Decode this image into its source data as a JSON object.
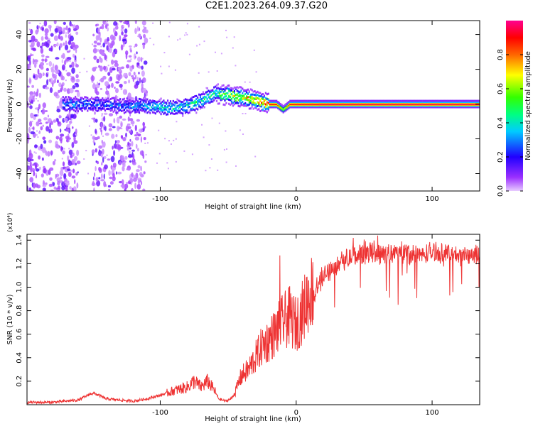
{
  "title": "C2E1.2023.264.09.37.G20",
  "colors": {
    "snr_line": "#ee3333",
    "frame": "#000000"
  },
  "chart_data": [
    {
      "type": "heatmap",
      "title": "C2E1.2023.264.09.37.G20",
      "xlabel": "Height of straight line (km)",
      "ylabel": "Frequency (Hz)",
      "xlim": [
        -198,
        135
      ],
      "ylim": [
        -50,
        48
      ],
      "xticks": [
        -100,
        0,
        100
      ],
      "xtick_labels": [
        "-100",
        "0",
        "100"
      ],
      "yticks": [
        -40,
        -20,
        0,
        20,
        40
      ],
      "ytick_labels": [
        "-40",
        "-20",
        "0",
        "20",
        "40"
      ],
      "colorbar": {
        "label": "Normalized spectral amplitude",
        "range": [
          0,
          1
        ],
        "ticks": [
          0,
          0.2,
          0.4,
          0.6,
          0.8
        ],
        "tick_labels": [
          "0.0",
          "0.2",
          "0.4",
          "0.6",
          "0.8"
        ],
        "colormap": "rainbow (violet-blue-cyan-green-yellow-red-magenta)"
      },
      "ridge": {
        "x": [
          -170,
          -150,
          -130,
          -110,
          -100,
          -90,
          -80,
          -70,
          -60,
          -50,
          -40,
          -30,
          -20,
          -15,
          -10,
          -5,
          0,
          20,
          60,
          100,
          135
        ],
        "freq": [
          0,
          0,
          -1,
          -1,
          -2,
          -2,
          -1,
          2,
          6,
          5,
          4,
          2,
          0,
          0,
          -3,
          0,
          0,
          0,
          0,
          0,
          0
        ],
        "amplitude": [
          0.35,
          0.3,
          0.3,
          0.4,
          0.45,
          0.45,
          0.45,
          0.5,
          0.5,
          0.75,
          0.8,
          0.85,
          0.9,
          0.9,
          0.6,
          0.9,
          0.92,
          0.95,
          0.95,
          0.95,
          0.95
        ]
      },
      "noise_regions": [
        {
          "x": [
            -198,
            -160
          ],
          "amplitude": 0.1
        },
        {
          "x": [
            -150,
            -110
          ],
          "amplitude": 0.1
        }
      ]
    },
    {
      "type": "line",
      "xlabel": "Height of straight line (km)",
      "ylabel": "SNR (10 * v/v)",
      "y_multiplier": "(x10⁴)",
      "xlim": [
        -198,
        135
      ],
      "ylim": [
        0,
        1.45
      ],
      "xticks": [
        -100,
        0,
        100
      ],
      "xtick_labels": [
        "-100",
        "0",
        "100"
      ],
      "yticks": [
        0.2,
        0.4,
        0.6,
        0.8,
        1.0,
        1.2,
        1.4
      ],
      "ytick_labels": [
        "0.2",
        "0.4",
        "0.6",
        "0.8",
        "1.0",
        "1.2",
        "1.4"
      ],
      "series": [
        {
          "x": [
            -198,
            -180,
            -160,
            -150,
            -145,
            -140,
            -120,
            -110,
            -100,
            -95,
            -90,
            -80,
            -75,
            -70,
            -65,
            -60,
            -57,
            -52,
            -48,
            -45,
            -42,
            -40,
            -35,
            -30,
            -25,
            -20,
            -15,
            -10,
            -5,
            0,
            5,
            10,
            15,
            20,
            25,
            30,
            40,
            50,
            60,
            70,
            80,
            90,
            100,
            110,
            120,
            135
          ],
          "y": [
            0.02,
            0.02,
            0.04,
            0.1,
            0.08,
            0.05,
            0.03,
            0.05,
            0.08,
            0.1,
            0.12,
            0.15,
            0.2,
            0.15,
            0.2,
            0.12,
            0.05,
            0.03,
            0.05,
            0.1,
            0.2,
            0.25,
            0.3,
            0.4,
            0.5,
            0.55,
            0.62,
            0.7,
            0.75,
            0.68,
            0.8,
            0.95,
            1.0,
            1.1,
            1.15,
            1.2,
            1.25,
            1.3,
            1.3,
            1.28,
            1.3,
            1.27,
            1.3,
            1.28,
            1.27,
            1.27
          ]
        }
      ],
      "spikes": [
        {
          "x": -12,
          "y": 1.27
        },
        {
          "x": 60,
          "y": 1.44
        },
        {
          "x": 42,
          "y": 1.42
        },
        {
          "x": 75,
          "y": 0.85
        },
        {
          "x": 113,
          "y": 0.93
        }
      ]
    }
  ]
}
